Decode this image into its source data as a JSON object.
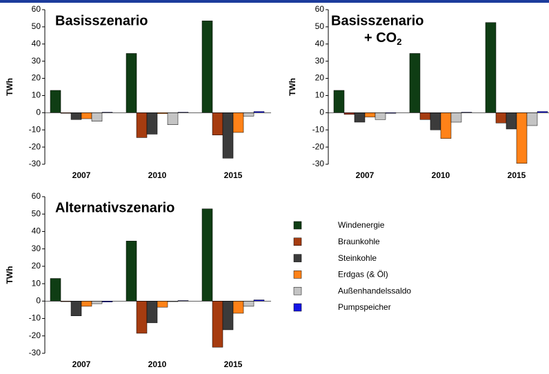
{
  "chart_data": [
    {
      "type": "bar",
      "title": "Basisszenario",
      "y_label": "TWh",
      "categories": [
        "2007",
        "2010",
        "2015"
      ],
      "series": [
        {
          "values": [
            13,
            34.5,
            53.5
          ]
        },
        {
          "values": [
            -0.3,
            -14.5,
            -13
          ]
        },
        {
          "values": [
            -4,
            -12.5,
            -26.5
          ]
        },
        {
          "values": [
            -3.5,
            -0.5,
            -11.5
          ]
        },
        {
          "values": [
            -5,
            -7,
            -2
          ]
        },
        {
          "values": [
            0.3,
            0.3,
            0.7
          ]
        }
      ],
      "ylim": [
        -30,
        60
      ],
      "yticks": [
        -30,
        -20,
        -10,
        0,
        10,
        20,
        30,
        40,
        50,
        60
      ]
    },
    {
      "type": "bar",
      "title": "Basisszenario",
      "subtitle": "+ CO",
      "subtitle_sub": "2",
      "y_label": "TWh",
      "categories": [
        "2007",
        "2010",
        "2015"
      ],
      "series": [
        {
          "values": [
            13,
            34.5,
            52.5
          ]
        },
        {
          "values": [
            -1,
            -4,
            -6
          ]
        },
        {
          "values": [
            -5.5,
            -10,
            -9.5
          ]
        },
        {
          "values": [
            -2.5,
            -15,
            -29.5
          ]
        },
        {
          "values": [
            -4,
            -5.5,
            -7.5
          ]
        },
        {
          "values": [
            0,
            0.3,
            0.7
          ]
        }
      ],
      "ylim": [
        -30,
        60
      ],
      "yticks": [
        -30,
        -20,
        -10,
        0,
        10,
        20,
        30,
        40,
        50,
        60
      ]
    },
    {
      "type": "bar",
      "title": "Alternativszenario",
      "y_label": "TWh",
      "categories": [
        "2007",
        "2010",
        "2015"
      ],
      "series": [
        {
          "values": [
            13,
            34.5,
            53
          ]
        },
        {
          "values": [
            -0.3,
            -18.5,
            -26.5
          ]
        },
        {
          "values": [
            -8.5,
            -12.5,
            -16.5
          ]
        },
        {
          "values": [
            -3,
            -3.5,
            -7
          ]
        },
        {
          "values": [
            -1.5,
            -0.3,
            -3
          ]
        },
        {
          "values": [
            -0.5,
            0.3,
            0.7
          ]
        }
      ],
      "ylim": [
        -30,
        60
      ],
      "yticks": [
        -30,
        -20,
        -10,
        0,
        10,
        20,
        30,
        40,
        50,
        60
      ]
    }
  ],
  "legend": [
    {
      "name": "Windenergie",
      "color": "#0f3d14"
    },
    {
      "name": "Braunkohle",
      "color": "#a63c10"
    },
    {
      "name": "Steinkohle",
      "color": "#3b3b3b"
    },
    {
      "name": "Erdgas (& Öl)",
      "color": "#ff8218"
    },
    {
      "name": "Außenhandelssaldo",
      "color": "#c4c4c4"
    },
    {
      "name": "Pumpspeicher",
      "color": "#1414e6"
    }
  ]
}
